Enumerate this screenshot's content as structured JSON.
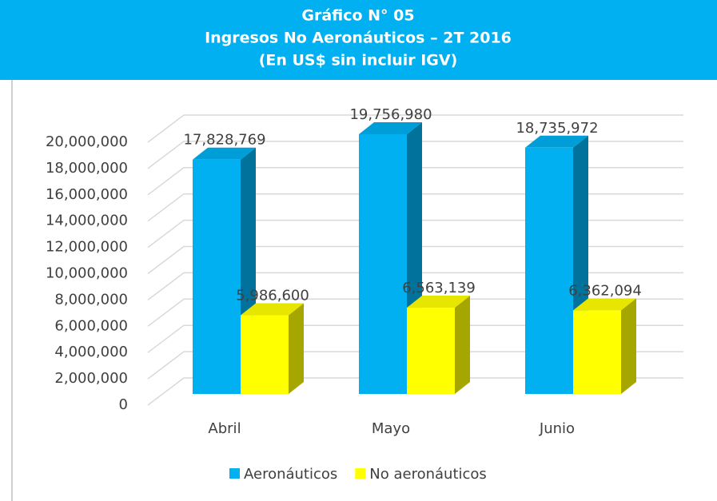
{
  "chart_data": {
    "type": "bar3d",
    "title": [
      "Gráfico N° 05",
      "Ingresos No Aeronáuticos – 2T 2016",
      "(En US$  sin incluir IGV)"
    ],
    "categories": [
      "Abril",
      "Mayo",
      "Junio"
    ],
    "series": [
      {
        "name": "Aeronáuticos",
        "color": "#00b0f0",
        "values": [
          17828769,
          19756980,
          18735972
        ],
        "value_labels": [
          "17,828,769",
          "19,756,980",
          "18,735,972"
        ]
      },
      {
        "name": "No aeronáuticos",
        "color": "#ffff00",
        "values": [
          5986600,
          6563139,
          6362094
        ],
        "value_labels": [
          "5,986,600",
          "6,563,139",
          "6,362,094"
        ]
      }
    ],
    "ylim": [
      0,
      20000000
    ],
    "yticks": [
      0,
      {
        "value": 2000000,
        "label": "2,000,000"
      },
      {
        "value": 4000000,
        "label": "4,000,000"
      },
      {
        "value": 6000000,
        "label": "6,000,000"
      },
      {
        "value": 8000000,
        "label": "8,000,000"
      },
      {
        "value": 10000000,
        "label": "10,000,000"
      },
      {
        "value": 12000000,
        "label": "12,000,000"
      },
      {
        "value": 14000000,
        "label": "14,000,000"
      },
      {
        "value": 16000000,
        "label": "16,000,000"
      },
      {
        "value": 18000000,
        "label": "18,000,000"
      },
      {
        "value": 20000000,
        "label": "20,000,000"
      }
    ],
    "grid": true,
    "legend": "bottom"
  }
}
